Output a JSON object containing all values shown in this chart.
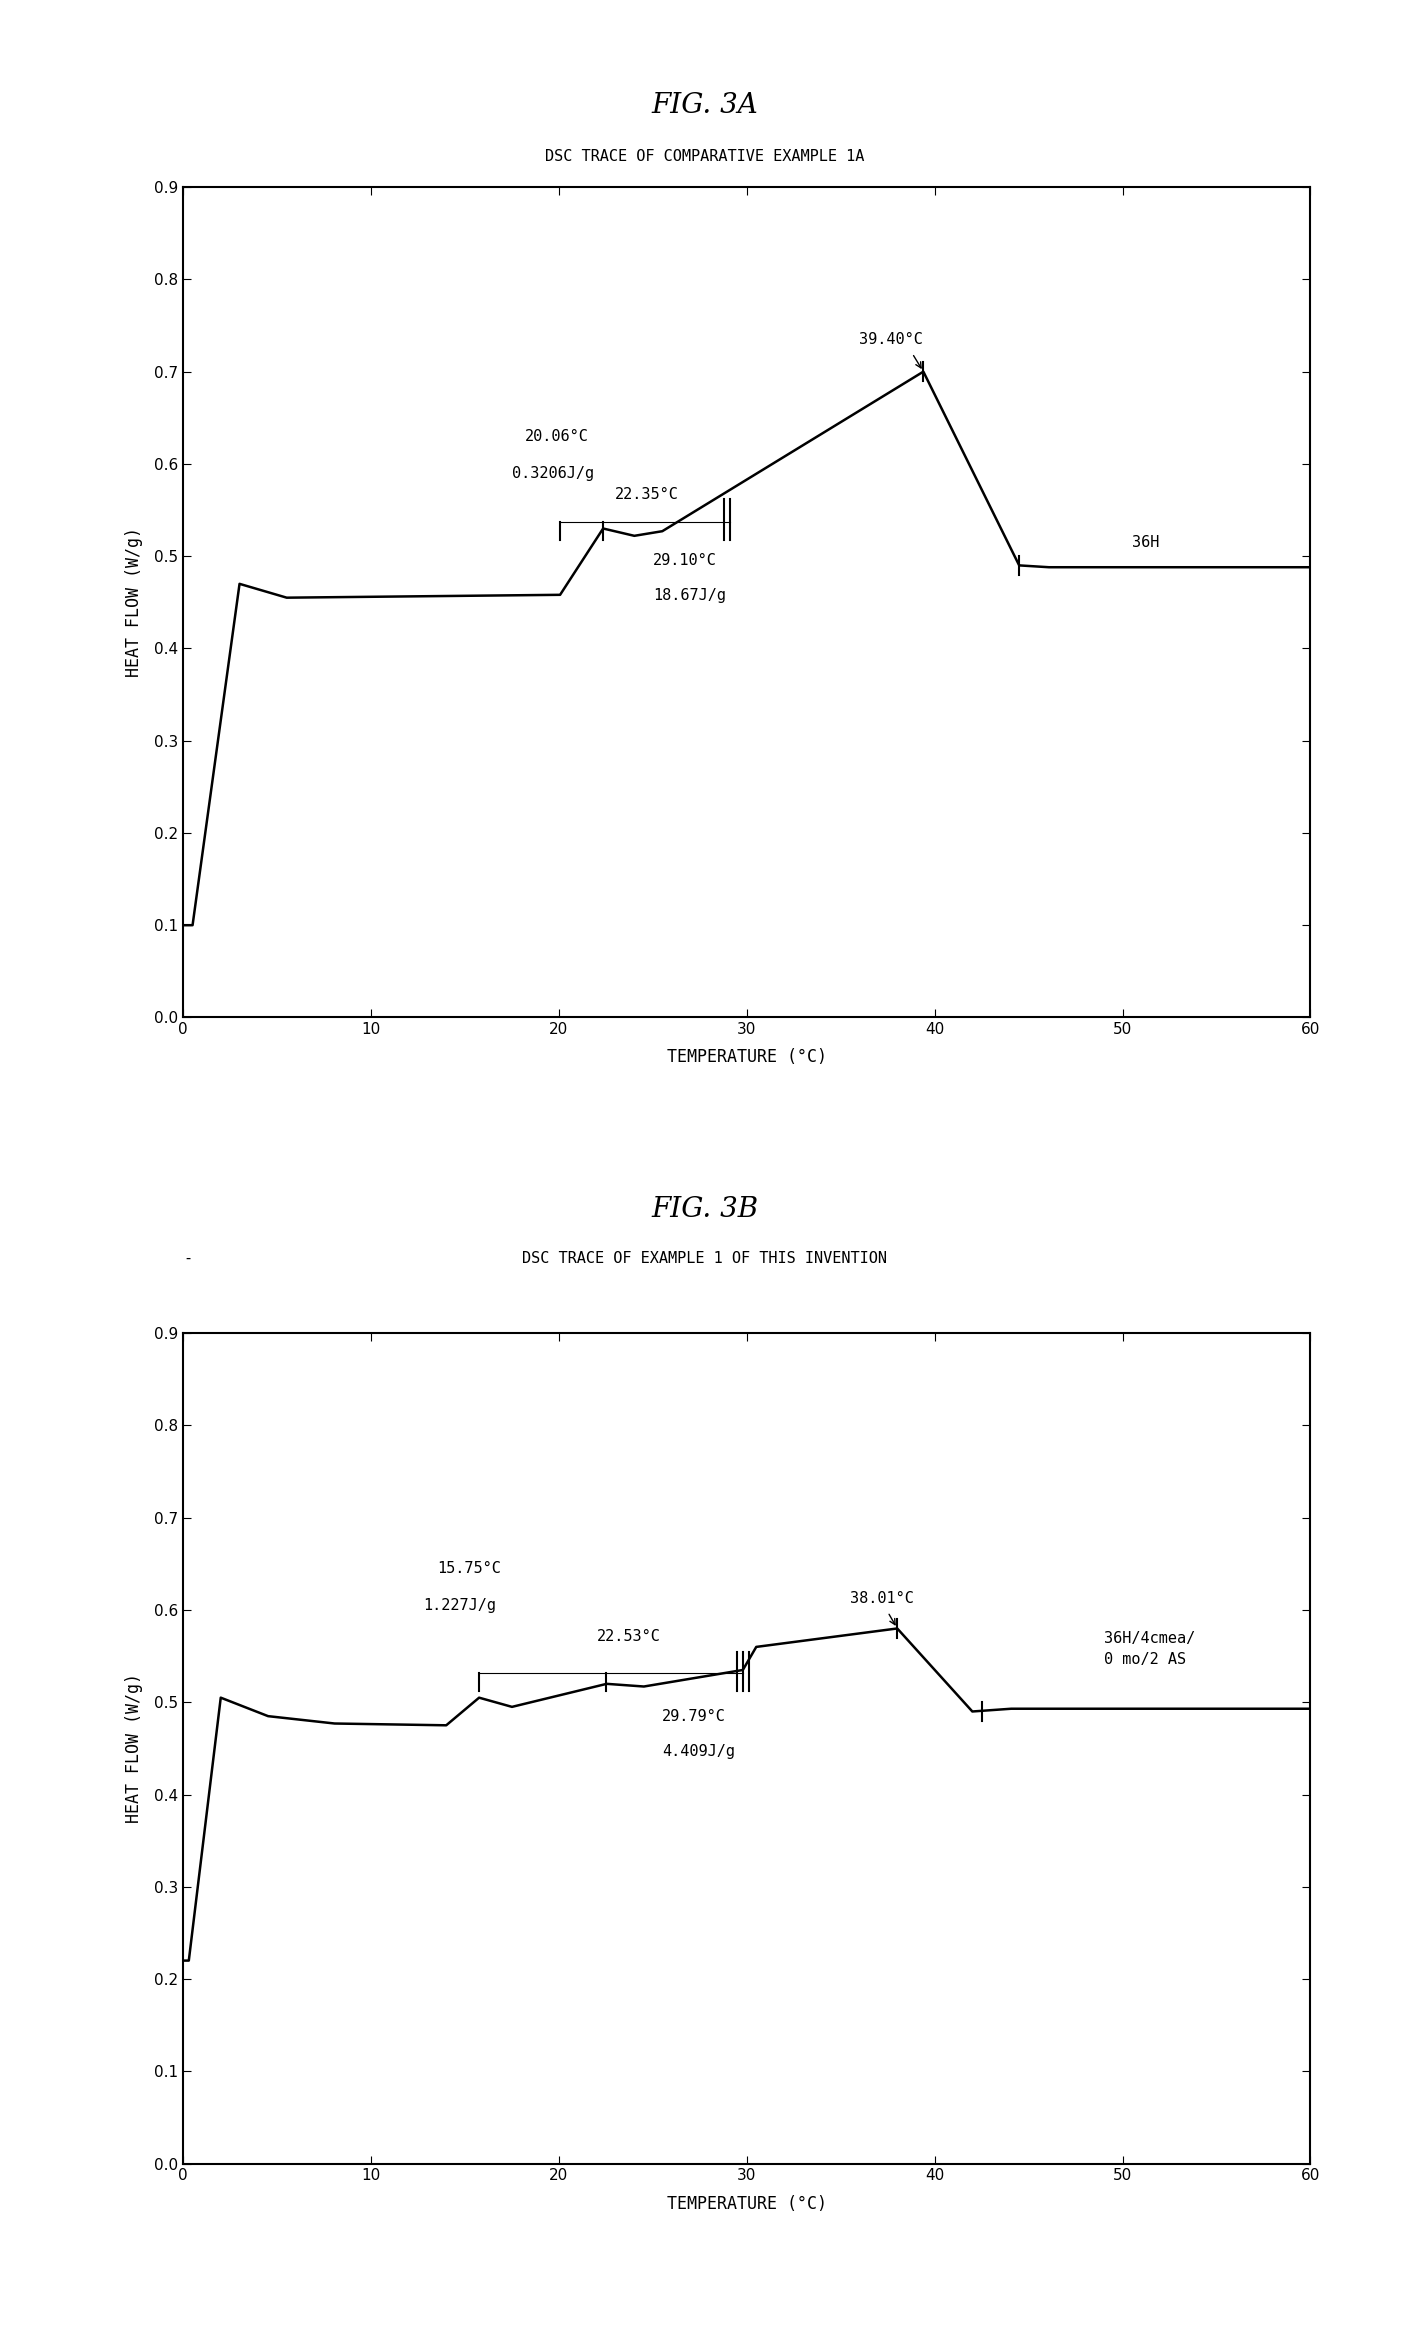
{
  "fig3a": {
    "title_fig": "FIG. 3A",
    "title_chart": "DSC TRACE OF COMPARATIVE EXAMPLE 1A",
    "xlabel": "TEMPERATURE (°C)",
    "ylabel": "HEAT FLOW (W/g)",
    "xlim": [
      0,
      60
    ],
    "ylim": [
      0,
      0.9
    ],
    "label_36H": "36H",
    "ann1_temp": "20.06°C",
    "ann1_energy": "0.3206J/g",
    "ann2_temp": "22.35°C",
    "ann3_temp": "29.10°C",
    "ann3_energy": "18.67J/g",
    "ann4_temp": "39.40°C"
  },
  "fig3b": {
    "title_fig": "FIG. 3B",
    "title_chart": "DSC TRACE OF EXAMPLE 1 OF THIS INVENTION",
    "xlabel": "TEMPERATURE (°C)",
    "ylabel": "HEAT FLOW (W/g)",
    "xlim": [
      0,
      60
    ],
    "ylim": [
      0,
      0.9
    ],
    "label_sample": "36H/4cmea/\n0 mo/2 AS",
    "ann1_temp": "15.75°C",
    "ann1_energy": "1.227J/g",
    "ann2_temp": "22.53°C",
    "ann3_temp": "29.79°C",
    "ann3_energy": "4.409J/g",
    "ann4_temp": "38.01°C"
  }
}
